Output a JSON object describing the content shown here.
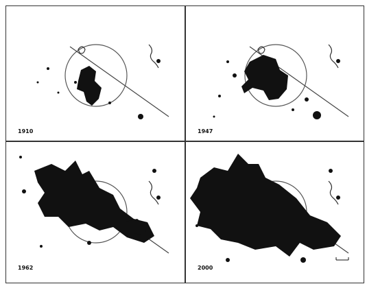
{
  "panels": [
    {
      "year": "1910"
    },
    {
      "year": "1947"
    },
    {
      "year": "1962"
    },
    {
      "year": "2000"
    }
  ]
}
